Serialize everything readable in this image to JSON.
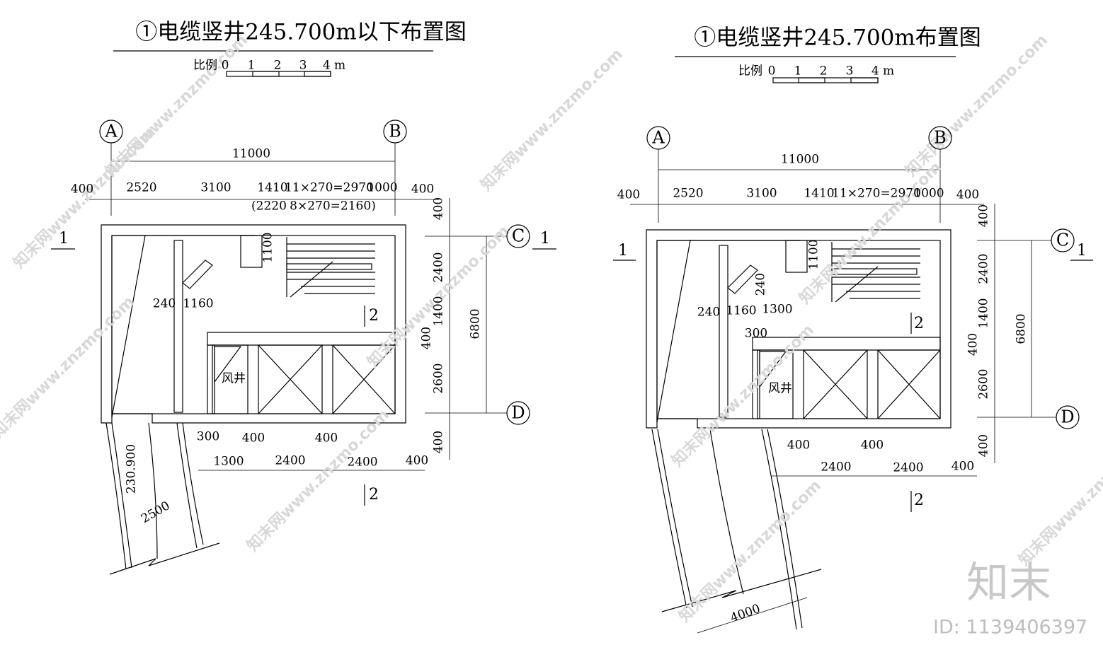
{
  "watermark": "知末网www.znzmo.com",
  "brand": "知末",
  "id": "ID: 1139406397",
  "left": {
    "title": "①电缆竖井245.700m以下布置图",
    "scale": {
      "label": "比例",
      "ticks": [
        "0",
        "1",
        "2",
        "3",
        "4 m"
      ]
    },
    "axes": [
      "A",
      "B",
      "C",
      "D"
    ],
    "sections": [
      "1",
      "1",
      "2",
      "2"
    ],
    "room": "风井",
    "elevation": "230.900",
    "dimensions": [
      "11000",
      "400",
      "2520",
      "3100",
      "1410",
      "11×270=2970",
      "1000",
      "400",
      "(2220",
      "8×270=2160)",
      "400",
      "2400",
      "1400",
      "400",
      "2600",
      "400",
      "6800",
      "1100",
      "240",
      "1160",
      "300",
      "400",
      "400",
      "1300",
      "2400",
      "2400",
      "400",
      "2500"
    ]
  },
  "right": {
    "title": "①电缆竖井245.700m布置图",
    "scale": {
      "label": "比例",
      "ticks": [
        "0",
        "1",
        "2",
        "3",
        "4 m"
      ]
    },
    "axes": [
      "A",
      "B",
      "C",
      "D"
    ],
    "sections": [
      "1",
      "1",
      "2",
      "2"
    ],
    "room": "风井",
    "dimensions": [
      "11000",
      "400",
      "2520",
      "3100",
      "1410",
      "11×270=2970",
      "1000",
      "400",
      "400",
      "2400",
      "1400",
      "400",
      "2600",
      "400",
      "6800",
      "1100",
      "240",
      "240",
      "1160",
      "1300",
      "300",
      "400",
      "400",
      "2400",
      "2400",
      "400",
      "4000"
    ]
  }
}
